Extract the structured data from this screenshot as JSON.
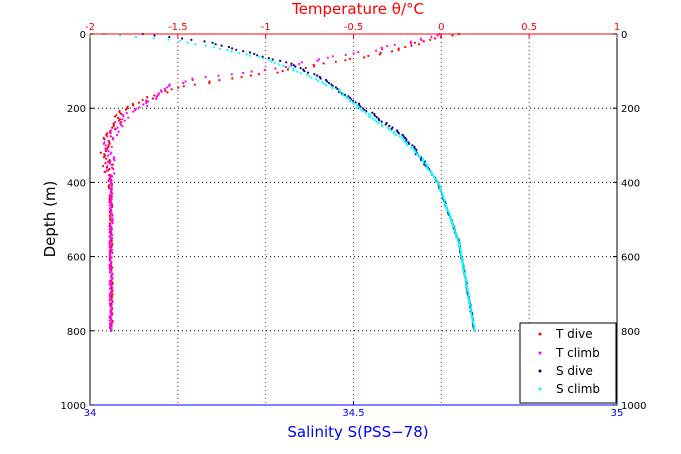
{
  "chart_data": {
    "type": "scatter",
    "title": "",
    "ylabel": "Depth (m)",
    "y_axis": {
      "ylim": [
        0,
        1000
      ],
      "reversed": true,
      "ticks": [
        0,
        200,
        400,
        600,
        800,
        1000
      ],
      "labels_both_sides": true
    },
    "x_top": {
      "label": "Temperature θ/°C",
      "xlim": [
        -2,
        1
      ],
      "ticks": [
        -2,
        -1.5,
        -1,
        -0.5,
        0,
        0.5,
        1
      ],
      "tick_labels": [
        "-2",
        "-1.5",
        "-1",
        "-0.5",
        "0",
        "0.5",
        "1"
      ],
      "color": "#ff0000"
    },
    "x_bottom": {
      "label": "Salinity S(PSS−78)",
      "xlim": [
        34,
        35
      ],
      "ticks": [
        34,
        34.5,
        35
      ],
      "tick_labels": [
        "34",
        "34.5",
        "35"
      ],
      "color": "#0000ff"
    },
    "grid": true,
    "legend_position": "bottom-right",
    "series": [
      {
        "name": "T dive",
        "axis": "top",
        "color": "#ff0000",
        "points": [
          [
            0.1,
            0
          ],
          [
            -0.1,
            20
          ],
          [
            -0.2,
            35
          ],
          [
            -0.35,
            55
          ],
          [
            -0.6,
            75
          ],
          [
            -0.9,
            100
          ],
          [
            -1.2,
            120
          ],
          [
            -1.5,
            145
          ],
          [
            -1.65,
            170
          ],
          [
            -1.72,
            185
          ],
          [
            -1.8,
            200
          ],
          [
            -1.84,
            230
          ],
          [
            -1.88,
            260
          ],
          [
            -1.92,
            300
          ],
          [
            -1.9,
            340
          ],
          [
            -1.89,
            380
          ],
          [
            -1.88,
            450
          ],
          [
            -1.88,
            550
          ],
          [
            -1.88,
            650
          ],
          [
            -1.88,
            750
          ],
          [
            -1.88,
            800
          ]
        ]
      },
      {
        "name": "T climb",
        "axis": "top",
        "color": "#ff00ff",
        "points": [
          [
            0.02,
            0
          ],
          [
            -0.2,
            25
          ],
          [
            -0.4,
            45
          ],
          [
            -0.6,
            60
          ],
          [
            -0.85,
            85
          ],
          [
            -1.1,
            105
          ],
          [
            -1.4,
            120
          ],
          [
            -1.55,
            140
          ],
          [
            -1.62,
            160
          ],
          [
            -1.68,
            190
          ],
          [
            -1.75,
            205
          ],
          [
            -1.82,
            230
          ],
          [
            -1.86,
            260
          ],
          [
            -1.9,
            300
          ],
          [
            -1.89,
            340
          ],
          [
            -1.88,
            380
          ],
          [
            -1.88,
            450
          ],
          [
            -1.88,
            550
          ],
          [
            -1.88,
            650
          ],
          [
            -1.88,
            750
          ],
          [
            -1.88,
            800
          ]
        ]
      },
      {
        "name": "S dive",
        "axis": "bottom",
        "color": "#000099",
        "points": [
          [
            34.1,
            0
          ],
          [
            34.22,
            20
          ],
          [
            34.3,
            50
          ],
          [
            34.38,
            80
          ],
          [
            34.44,
            120
          ],
          [
            34.48,
            160
          ],
          [
            34.52,
            200
          ],
          [
            34.56,
            240
          ],
          [
            34.6,
            280
          ],
          [
            34.62,
            320
          ],
          [
            34.64,
            360
          ],
          [
            34.66,
            400
          ],
          [
            34.68,
            480
          ],
          [
            34.7,
            560
          ],
          [
            34.71,
            640
          ],
          [
            34.72,
            720
          ],
          [
            34.73,
            800
          ]
        ]
      },
      {
        "name": "S climb",
        "axis": "bottom",
        "color": "#00ffff",
        "points": [
          [
            34.03,
            0
          ],
          [
            34.15,
            15
          ],
          [
            34.25,
            40
          ],
          [
            34.34,
            70
          ],
          [
            34.41,
            110
          ],
          [
            34.47,
            150
          ],
          [
            34.51,
            200
          ],
          [
            34.55,
            240
          ],
          [
            34.59,
            280
          ],
          [
            34.62,
            320
          ],
          [
            34.64,
            360
          ],
          [
            34.66,
            400
          ],
          [
            34.68,
            480
          ],
          [
            34.7,
            560
          ],
          [
            34.71,
            640
          ],
          [
            34.72,
            720
          ],
          [
            34.73,
            800
          ]
        ]
      }
    ]
  }
}
